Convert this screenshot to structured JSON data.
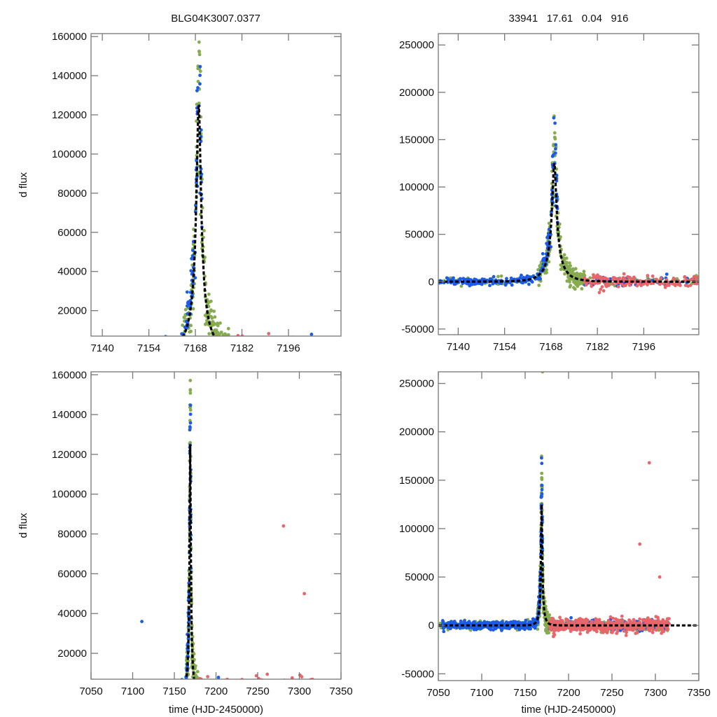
{
  "figure": {
    "left_title": "BLG04K3007.0377",
    "right_title": "33941   17.61   0.04   916",
    "colors": {
      "series_blue": "#1a5ce8",
      "series_green": "#86ac4f",
      "series_red": "#e8666a",
      "model": "#000000",
      "axis": "#777777"
    }
  },
  "chart_data": [
    {
      "id": "top-left",
      "type": "scatter",
      "title": "BLG04K3007.0377",
      "xlabel": "",
      "ylabel": "d flux",
      "xlim": [
        7136.6,
        7211.8
      ],
      "ylim": [
        7000,
        161500
      ],
      "xticks": [
        7140,
        7154,
        7168,
        7182,
        7196
      ],
      "yticks": [
        20000,
        40000,
        60000,
        80000,
        100000,
        120000,
        140000,
        160000
      ],
      "grid": false,
      "model": {
        "name": "fit",
        "style": "dashed",
        "t0": 7169.0,
        "peak": 125000,
        "tE": 5.2,
        "baseline": 0
      },
      "series": [
        {
          "name": "blue",
          "color": "#1a5ce8"
        },
        {
          "name": "green",
          "color": "#86ac4f"
        },
        {
          "name": "red",
          "color": "#e8666a"
        }
      ]
    },
    {
      "id": "top-right",
      "type": "scatter",
      "title": "33941   17.61   0.04   916",
      "xlabel": "",
      "ylabel": "",
      "xlim": [
        7134.0,
        7212.6
      ],
      "ylim": [
        -56000,
        262000
      ],
      "xticks": [
        7140,
        7154,
        7168,
        7182,
        7196
      ],
      "yticks": [
        -50000,
        0,
        50000,
        100000,
        150000,
        200000,
        250000
      ],
      "grid": false,
      "model": {
        "name": "fit",
        "style": "dashed",
        "t0": 7169.0,
        "peak": 125000,
        "tE": 5.2,
        "baseline": 0
      },
      "series": [
        {
          "name": "blue",
          "color": "#1a5ce8"
        },
        {
          "name": "green",
          "color": "#86ac4f"
        },
        {
          "name": "red",
          "color": "#e8666a"
        }
      ]
    },
    {
      "id": "bottom-left",
      "type": "scatter",
      "title": "",
      "xlabel": "time (HJD-2450000)",
      "ylabel": "d flux",
      "xlim": [
        7050,
        7350
      ],
      "ylim": [
        7000,
        161500
      ],
      "xticks": [
        7050,
        7100,
        7150,
        7200,
        7250,
        7300,
        7350
      ],
      "yticks": [
        20000,
        40000,
        60000,
        80000,
        100000,
        120000,
        140000,
        160000
      ],
      "grid": false,
      "model": {
        "name": "fit",
        "style": "dashed",
        "t0": 7169.0,
        "peak": 125000,
        "tE": 5.2,
        "baseline": 0
      },
      "outliers": [
        {
          "series": "red",
          "x": 7281,
          "y": 84000
        },
        {
          "series": "red",
          "x": 7306,
          "y": 50000
        },
        {
          "series": "blue",
          "x": 7111,
          "y": 36000
        }
      ],
      "series": [
        {
          "name": "blue",
          "color": "#1a5ce8"
        },
        {
          "name": "green",
          "color": "#86ac4f"
        },
        {
          "name": "red",
          "color": "#e8666a"
        }
      ]
    },
    {
      "id": "bottom-right",
      "type": "scatter",
      "title": "",
      "xlabel": "time (HJD-2450000)",
      "ylabel": "",
      "xlim": [
        7050,
        7350
      ],
      "ylim": [
        -57000,
        262000
      ],
      "xticks": [
        7050,
        7100,
        7150,
        7200,
        7250,
        7300,
        7350
      ],
      "yticks": [
        -50000,
        0,
        50000,
        100000,
        150000,
        200000,
        250000
      ],
      "grid": false,
      "model": {
        "name": "fit",
        "style": "dashed",
        "t0": 7169.0,
        "peak": 125000,
        "tE": 5.2,
        "baseline": 0
      },
      "outliers": [
        {
          "series": "red",
          "x": 7293,
          "y": 168000
        },
        {
          "series": "red",
          "x": 7282,
          "y": 84000
        },
        {
          "series": "red",
          "x": 7305,
          "y": 50000
        },
        {
          "series": "green",
          "x": 7170,
          "y": 262000
        }
      ],
      "series": [
        {
          "name": "blue",
          "color": "#1a5ce8"
        },
        {
          "name": "green",
          "color": "#86ac4f"
        },
        {
          "name": "red",
          "color": "#e8666a"
        }
      ]
    }
  ]
}
